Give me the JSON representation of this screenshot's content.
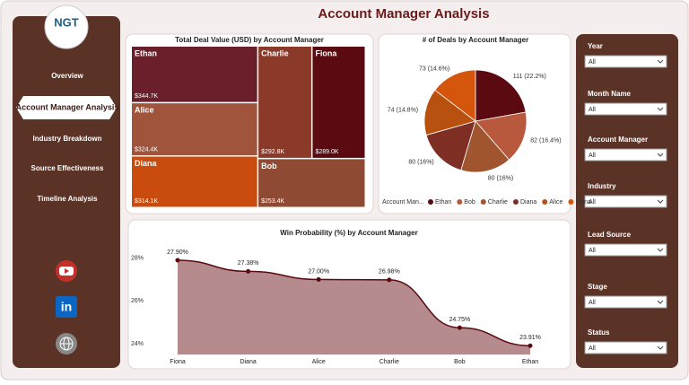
{
  "header": {
    "title": "Account Manager Analysis"
  },
  "logo": {
    "text": "NGT"
  },
  "nav": [
    {
      "label": "Overview",
      "active": false
    },
    {
      "label": "Account Manager Analysis",
      "active": true
    },
    {
      "label": "Industry Breakdown",
      "active": false
    },
    {
      "label": "Source Effectiveness",
      "active": false
    },
    {
      "label": "Timeline Analysis",
      "active": false
    }
  ],
  "filters": [
    {
      "label": "Year",
      "value": "All"
    },
    {
      "label": "Month Name",
      "value": "All"
    },
    {
      "label": "Account Manager",
      "value": "All"
    },
    {
      "label": "Industry",
      "value": "All"
    },
    {
      "label": "Lead Source",
      "value": "All"
    },
    {
      "label": "Stage",
      "value": "All"
    },
    {
      "label": "Status",
      "value": "All"
    }
  ],
  "chart_data": [
    {
      "type": "treemap",
      "title": "Total Deal Value (USD) by Account Manager",
      "categories": [
        "Ethan",
        "Alice",
        "Diana",
        "Charlie",
        "Fiona",
        "Bob"
      ],
      "values": [
        344700,
        324400,
        314100,
        292800,
        289000,
        253400
      ],
      "value_labels": [
        "$344.7K",
        "$324.4K",
        "$314.1K",
        "$292.8K",
        "$289.0K",
        "$253.4K"
      ],
      "colors": [
        "#6b1f2a",
        "#a0543c",
        "#c94c0e",
        "#8b3a2a",
        "#5a0a10",
        "#8e4a32"
      ]
    },
    {
      "type": "pie",
      "title": "# of Deals by Account Manager",
      "categories": [
        "Ethan",
        "Bob",
        "Charlie",
        "Diana",
        "Alice",
        "Fiona"
      ],
      "values": [
        111,
        82,
        80,
        80,
        74,
        73
      ],
      "value_labels": [
        "111 (22.2%)",
        "82 (16.4%)",
        "80 (16%)",
        "80 (16%)",
        "74 (14.8%)",
        "73 (14.6%)"
      ],
      "colors": [
        "#5a0a10",
        "#b8583c",
        "#a0552f",
        "#7e2e22",
        "#b8500f",
        "#d4560c"
      ],
      "legend_title": "Account Man...",
      "legend": "bottom"
    },
    {
      "type": "area",
      "title": "Win Probability (%) by Account Manager",
      "categories": [
        "Fiona",
        "Diana",
        "Alice",
        "Charlie",
        "Bob",
        "Ethan"
      ],
      "values": [
        27.9,
        27.38,
        27.0,
        26.98,
        24.75,
        23.91
      ],
      "value_labels": [
        "27.90%",
        "27.38%",
        "27.00%",
        "26.98%",
        "24.75%",
        "23.91%"
      ],
      "ylim": [
        23.5,
        28.4
      ],
      "yticks": [
        {
          "value": 24,
          "label": "24%"
        },
        {
          "value": 26,
          "label": "26%"
        },
        {
          "value": 28,
          "label": "28%"
        }
      ],
      "color": "#5a0a10",
      "fill": "#b58b8d"
    }
  ]
}
